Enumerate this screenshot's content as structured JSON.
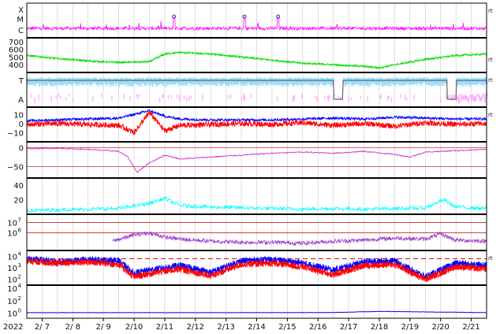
{
  "year_label": "2022",
  "x_ticks": [
    "2/ 7",
    "2/ 8",
    "2/ 9",
    "2/10",
    "2/11",
    "2/12",
    "2/13",
    "2/14",
    "2/15",
    "2/16",
    "2/17",
    "2/18",
    "2/19",
    "2/20",
    "2/21"
  ],
  "side_marker": "rt",
  "colors": {
    "grid": "#c8c8c8",
    "frame": "#000000",
    "xray": "#ff00ff",
    "speed": "#00dd00",
    "ta_upper": "#99ddff",
    "ta_lower": "#ffaaff",
    "ta_line": "#666666",
    "bt": "#0000ff",
    "bz": "#ff0000",
    "dst": "#cc33cc",
    "kp": "#00ffff",
    "flux_ref": "#cc0000",
    "proton": "#9933cc",
    "electron_blue": "#0000ff",
    "electron_red": "#ff0000"
  },
  "chart_data": [
    {
      "type": "line",
      "id": "xray",
      "ytick_labels": [
        "X",
        "M",
        "C"
      ],
      "series": [
        {
          "color": "#ff00ff",
          "baseline": "C",
          "peaks_day": [
            4.8,
            7.1,
            8.2
          ]
        }
      ],
      "event_markers_day": [
        4.8,
        7.1,
        8.2
      ]
    },
    {
      "type": "line",
      "id": "speed",
      "ytick_labels": [
        "700",
        "600",
        "500",
        "400"
      ],
      "ylim": [
        300,
        750
      ],
      "series": [
        {
          "x": [
            0,
            1,
            2,
            3,
            4,
            4.5,
            5,
            6,
            7,
            8,
            9,
            10,
            11,
            11.5,
            12,
            13,
            14,
            15
          ],
          "values": [
            520,
            480,
            450,
            430,
            440,
            540,
            560,
            540,
            500,
            460,
            420,
            400,
            380,
            360,
            400,
            470,
            520,
            540
          ]
        }
      ]
    },
    {
      "type": "line",
      "id": "ta",
      "ytick_labels": [
        "T",
        "A"
      ],
      "series": [
        {
          "segments_day": [
            [
              0,
              10
            ],
            [
              10.3,
              11.4
            ],
            [
              11.7,
              15
            ]
          ],
          "state_upper": "T",
          "dips_to": "A",
          "dip_ranges_day": [
            [
              10.0,
              10.3
            ],
            [
              13.7,
              14.0
            ]
          ]
        }
      ]
    },
    {
      "type": "line",
      "id": "imf",
      "ytick_labels": [
        "10",
        "0",
        "-10"
      ],
      "ylim": [
        -20,
        18
      ],
      "series": [
        {
          "name": "",
          "color": "#0000ff",
          "x": [
            0,
            1,
            2,
            3,
            3.5,
            4,
            4.5,
            5,
            6,
            7,
            8,
            9,
            10,
            11,
            12,
            13,
            14,
            15
          ],
          "values": [
            3,
            4,
            5,
            6,
            10,
            14,
            8,
            5,
            4,
            4,
            4,
            5,
            6,
            5,
            7,
            6,
            5,
            5
          ]
        },
        {
          "name": "",
          "color": "#ff0000",
          "x": [
            0,
            1,
            2,
            3,
            3.5,
            4,
            4.5,
            5,
            6,
            7,
            8,
            9,
            10,
            11,
            12,
            13,
            14,
            15
          ],
          "values": [
            -1,
            0,
            -1,
            -2,
            -10,
            12,
            -8,
            -2,
            -1,
            0,
            -1,
            1,
            -2,
            0,
            -3,
            1,
            -1,
            0
          ]
        }
      ]
    },
    {
      "type": "line",
      "id": "dst",
      "ytick_labels": [
        "0",
        "-50"
      ],
      "ylim": [
        -80,
        15
      ],
      "series": [
        {
          "color": "#cc33cc",
          "x": [
            0,
            1,
            2,
            3,
            3.3,
            3.6,
            4,
            4.5,
            5,
            6,
            7,
            8,
            9,
            10,
            11,
            12,
            12.5,
            13,
            14,
            15
          ],
          "values": [
            -3,
            -2,
            -5,
            -10,
            -25,
            -65,
            -40,
            -20,
            -30,
            -25,
            -20,
            -15,
            -12,
            -15,
            -10,
            -18,
            -25,
            -12,
            -8,
            -5
          ]
        }
      ]
    },
    {
      "type": "line",
      "id": "kp",
      "ytick_labels": [
        "40",
        "20"
      ],
      "ylim": [
        0,
        50
      ],
      "series": [
        {
          "color": "#00ffff",
          "x": [
            0,
            1,
            2,
            3,
            4,
            4.5,
            5,
            6,
            7,
            8,
            9,
            10,
            11,
            12,
            13,
            13.6,
            14,
            15
          ],
          "values": [
            5,
            6,
            7,
            8,
            15,
            22,
            12,
            10,
            9,
            8,
            7,
            8,
            7,
            8,
            9,
            20,
            10,
            8
          ]
        }
      ]
    },
    {
      "type": "line",
      "id": "proton",
      "ytick_labels": [
        "10^7",
        "10^6"
      ],
      "log": true,
      "reference_levels": [
        "10^7",
        "10^6"
      ],
      "series": [
        {
          "color": "#9933cc",
          "x": [
            2.8,
            3.5,
            4,
            4.5,
            5,
            6,
            7,
            8,
            9,
            10,
            11,
            12,
            13,
            13.5,
            14,
            15
          ],
          "values_log10": [
            5.2,
            5.8,
            6.0,
            5.6,
            5.4,
            5.2,
            5.1,
            5.1,
            5.0,
            5.2,
            5.3,
            5.5,
            5.4,
            5.9,
            5.3,
            5.2
          ]
        }
      ]
    },
    {
      "type": "line",
      "id": "electron",
      "ytick_labels": [
        "10^4",
        "10^3",
        "10^2"
      ],
      "log": true,
      "reference_level": "10^4",
      "series": [
        {
          "color": "#0000ff",
          "x": [
            0,
            1,
            2,
            3,
            3.5,
            4,
            5,
            6,
            7,
            8,
            9,
            10,
            11,
            12,
            13,
            14,
            15
          ],
          "values_log10": [
            3.8,
            3.5,
            3.7,
            3.6,
            2.5,
            2.8,
            3.2,
            2.6,
            3.6,
            3.7,
            3.4,
            2.8,
            3.5,
            3.6,
            2.2,
            3.4,
            3.2
          ]
        },
        {
          "color": "#ff0000",
          "x": [
            0,
            1,
            2,
            3,
            3.5,
            4,
            5,
            6,
            7,
            8,
            9,
            10,
            11,
            12,
            13,
            14,
            15
          ],
          "values_log10": [
            3.6,
            3.4,
            3.5,
            3.3,
            2.2,
            2.5,
            2.9,
            2.3,
            3.3,
            3.4,
            3.1,
            2.4,
            3.2,
            3.3,
            2.0,
            3.1,
            2.9
          ]
        }
      ]
    },
    {
      "type": "line",
      "id": "neutron",
      "ytick_labels": [
        "10^4",
        "10^2",
        "10^0"
      ],
      "log": true,
      "series": [
        {
          "color": "#0000ff",
          "x": [
            0,
            5,
            10,
            11.5,
            15
          ],
          "values_log10": [
            0.1,
            0.1,
            0.12,
            0.3,
            0.1
          ]
        }
      ]
    }
  ]
}
